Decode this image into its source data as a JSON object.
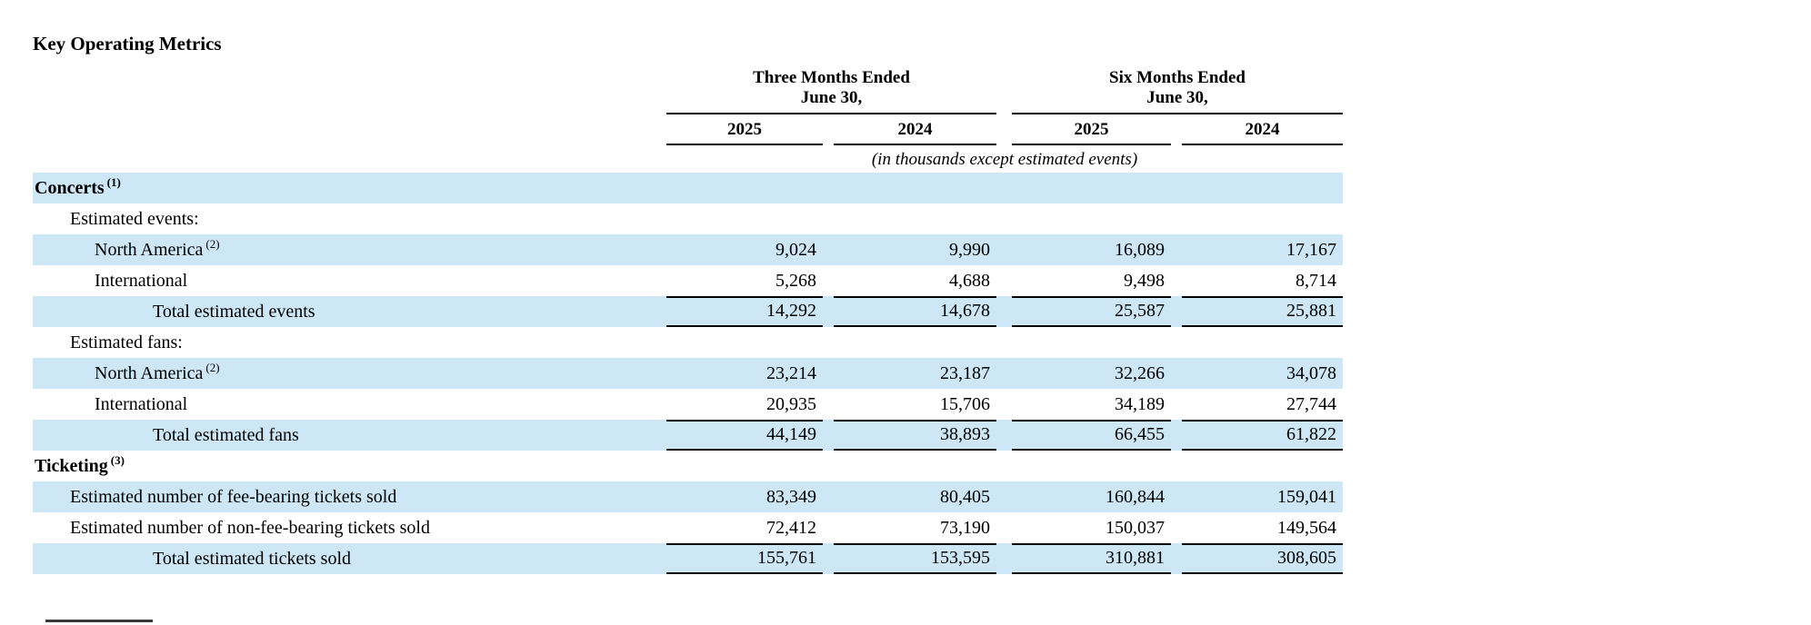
{
  "title": "Key Operating Metrics",
  "colors": {
    "row_highlight": "#cde7f6",
    "rule": "#000000"
  },
  "header": {
    "groups": [
      {
        "line1": "Three Months Ended",
        "line2": "June 30,"
      },
      {
        "line1": "Six Months Ended",
        "line2": "June 30,"
      }
    ],
    "years": [
      "2025",
      "2024",
      "2025",
      "2024"
    ],
    "note": "(in thousands except estimated events)"
  },
  "rows": [
    {
      "label": "Concerts",
      "sup": "(1)",
      "values": []
    },
    {
      "label": "Estimated events:",
      "values": []
    },
    {
      "label": "North America",
      "sup": "(2)",
      "values": [
        "9,024",
        "9,990",
        "16,089",
        "17,167"
      ]
    },
    {
      "label": "International",
      "values": [
        "5,268",
        "4,688",
        "9,498",
        "8,714"
      ]
    },
    {
      "label": "Total estimated events",
      "values": [
        "14,292",
        "14,678",
        "25,587",
        "25,881"
      ]
    },
    {
      "label": "Estimated fans:",
      "values": []
    },
    {
      "label": "North America",
      "sup": "(2)",
      "values": [
        "23,214",
        "23,187",
        "32,266",
        "34,078"
      ]
    },
    {
      "label": "International",
      "values": [
        "20,935",
        "15,706",
        "34,189",
        "27,744"
      ]
    },
    {
      "label": "Total estimated fans",
      "values": [
        "44,149",
        "38,893",
        "66,455",
        "61,822"
      ]
    },
    {
      "label": "Ticketing",
      "sup": "(3)",
      "values": []
    },
    {
      "label": "Estimated number of fee-bearing tickets sold",
      "values": [
        "83,349",
        "80,405",
        "160,844",
        "159,041"
      ]
    },
    {
      "label": "Estimated number of non-fee-bearing tickets sold",
      "values": [
        "72,412",
        "73,190",
        "150,037",
        "149,564"
      ]
    },
    {
      "label": "Total estimated tickets sold",
      "values": [
        "155,761",
        "153,595",
        "310,881",
        "308,605"
      ]
    }
  ]
}
